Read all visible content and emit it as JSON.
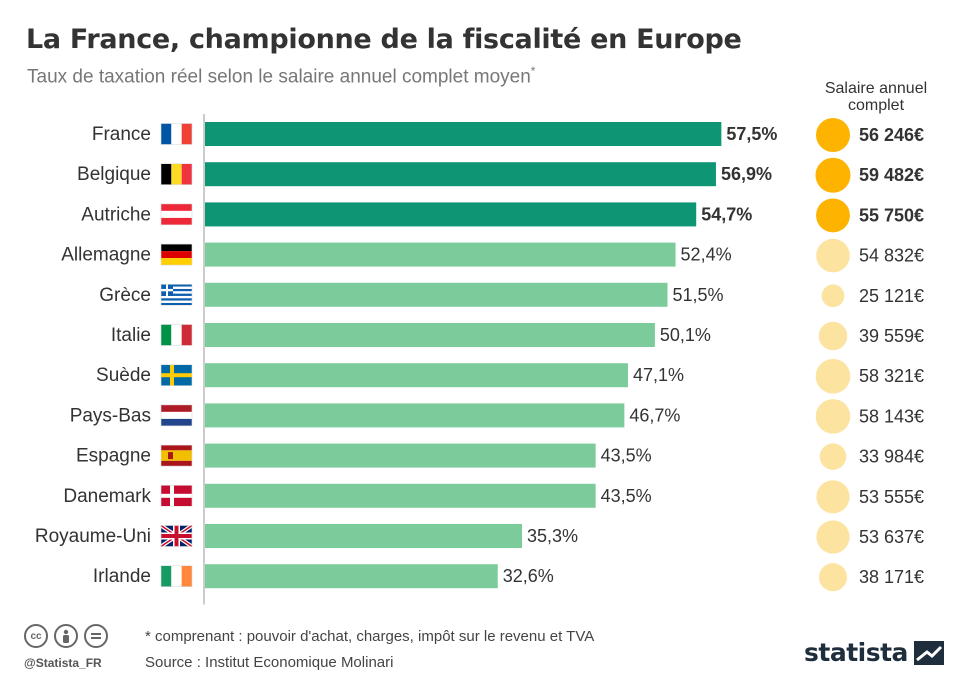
{
  "header": {
    "title": "La France, championne de la fiscalité en Europe",
    "subtitle": "Taux de taxation réel selon le salaire annuel complet moyen",
    "subtitle_mark": "*"
  },
  "salary_header": "Salaire annuel complet",
  "footer": {
    "footnote": "* comprenant : pouvoir d'achat, charges, impôt sur le revenu et TVA",
    "source": "Source : Institut Economique Molinari",
    "handle": "@Statista_FR",
    "logo": "statista"
  },
  "colors": {
    "bar_highlight": "#0e9574",
    "bar_default": "#7ccb9b",
    "bubble_highlight": "#fdb300",
    "bubble_default": "#fde3a0"
  },
  "chart_data": {
    "type": "bar",
    "orientation": "horizontal",
    "categories": [
      "France",
      "Belgique",
      "Autriche",
      "Allemagne",
      "Grèce",
      "Italie",
      "Suède",
      "Pays-Bas",
      "Espagne",
      "Danemark",
      "Royaume-Uni",
      "Irlande"
    ],
    "values": [
      57.5,
      56.9,
      54.7,
      52.4,
      51.5,
      50.1,
      47.1,
      46.7,
      43.5,
      43.5,
      35.3,
      32.6
    ],
    "value_labels": [
      "57,5%",
      "56,9%",
      "54,7%",
      "52,4%",
      "51,5%",
      "50,1%",
      "47,1%",
      "46,7%",
      "43,5%",
      "43,5%",
      "35,3%",
      "32,6%"
    ],
    "highlighted": [
      true,
      true,
      true,
      false,
      false,
      false,
      false,
      false,
      false,
      false,
      false,
      false
    ],
    "flags": [
      "flag-france",
      "flag-belgium",
      "flag-austria",
      "flag-germany",
      "flag-greece",
      "flag-italy",
      "flag-sweden",
      "flag-netherlands",
      "flag-spain",
      "flag-denmark",
      "flag-uk",
      "flag-ireland"
    ],
    "salary_values": [
      56246,
      59482,
      55750,
      54832,
      25121,
      39559,
      58321,
      58143,
      33984,
      53555,
      53637,
      38171
    ],
    "salary_labels": [
      "56 246€",
      "59 482€",
      "55 750€",
      "54 832€",
      "25 121€",
      "39 559€",
      "58 321€",
      "58 143€",
      "33 984€",
      "53 555€",
      "53 637€",
      "38 171€"
    ],
    "xlim": [
      0,
      70
    ],
    "grid": false,
    "legend": "none"
  }
}
